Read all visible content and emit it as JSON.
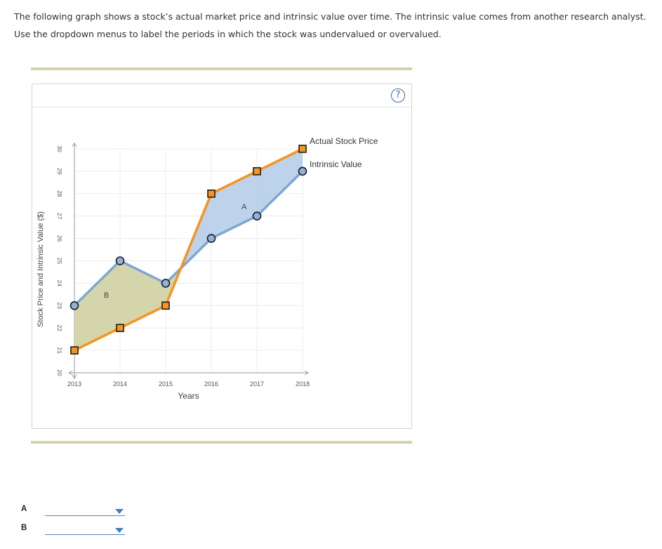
{
  "instructions": "The following graph shows a stock’s actual market price and intrinsic value over time. The intrinsic value comes from another research analyst. Use the dropdown menus to label the periods in which the stock was undervalued or overvalued.",
  "help_button": {
    "label": "?",
    "icon": "question-mark-icon"
  },
  "chart_data": {
    "type": "line",
    "xlabel": "Years",
    "ylabel": "Stock Price and Intrinsic Value ($)",
    "x": [
      2013,
      2014,
      2015,
      2016,
      2017,
      2018
    ],
    "x_tick_labels": [
      "2013",
      "2014",
      "2015",
      "2016",
      "2017",
      "2018"
    ],
    "xlim": [
      2013,
      2018
    ],
    "ylim": [
      20,
      30
    ],
    "y_ticks": [
      20,
      21,
      22,
      23,
      24,
      25,
      26,
      27,
      28,
      29,
      30
    ],
    "grid": true,
    "series": [
      {
        "name": "Actual Stock Price",
        "marker": "square",
        "color": "#f7941d",
        "marker_fill": "#f7941d",
        "values": [
          21,
          22,
          23,
          28,
          29,
          30
        ]
      },
      {
        "name": "Intrinsic Value",
        "marker": "circle",
        "color": "#7da7d3",
        "marker_fill": "#8fb3dc",
        "values": [
          23,
          25,
          24,
          26,
          27,
          29
        ]
      }
    ],
    "regions": [
      {
        "label": "A",
        "color": "#b9d0ea",
        "x_range": [
          2015.33,
          2018
        ],
        "at": [
          2016.72,
          27.3
        ]
      },
      {
        "label": "B",
        "color": "#d2d3a6",
        "x_range": [
          2013,
          2015.33
        ],
        "at": [
          2013.7,
          23.35
        ]
      }
    ],
    "legend": "top-right"
  },
  "answers": [
    {
      "label": "A",
      "selected": ""
    },
    {
      "label": "B",
      "selected": ""
    }
  ]
}
